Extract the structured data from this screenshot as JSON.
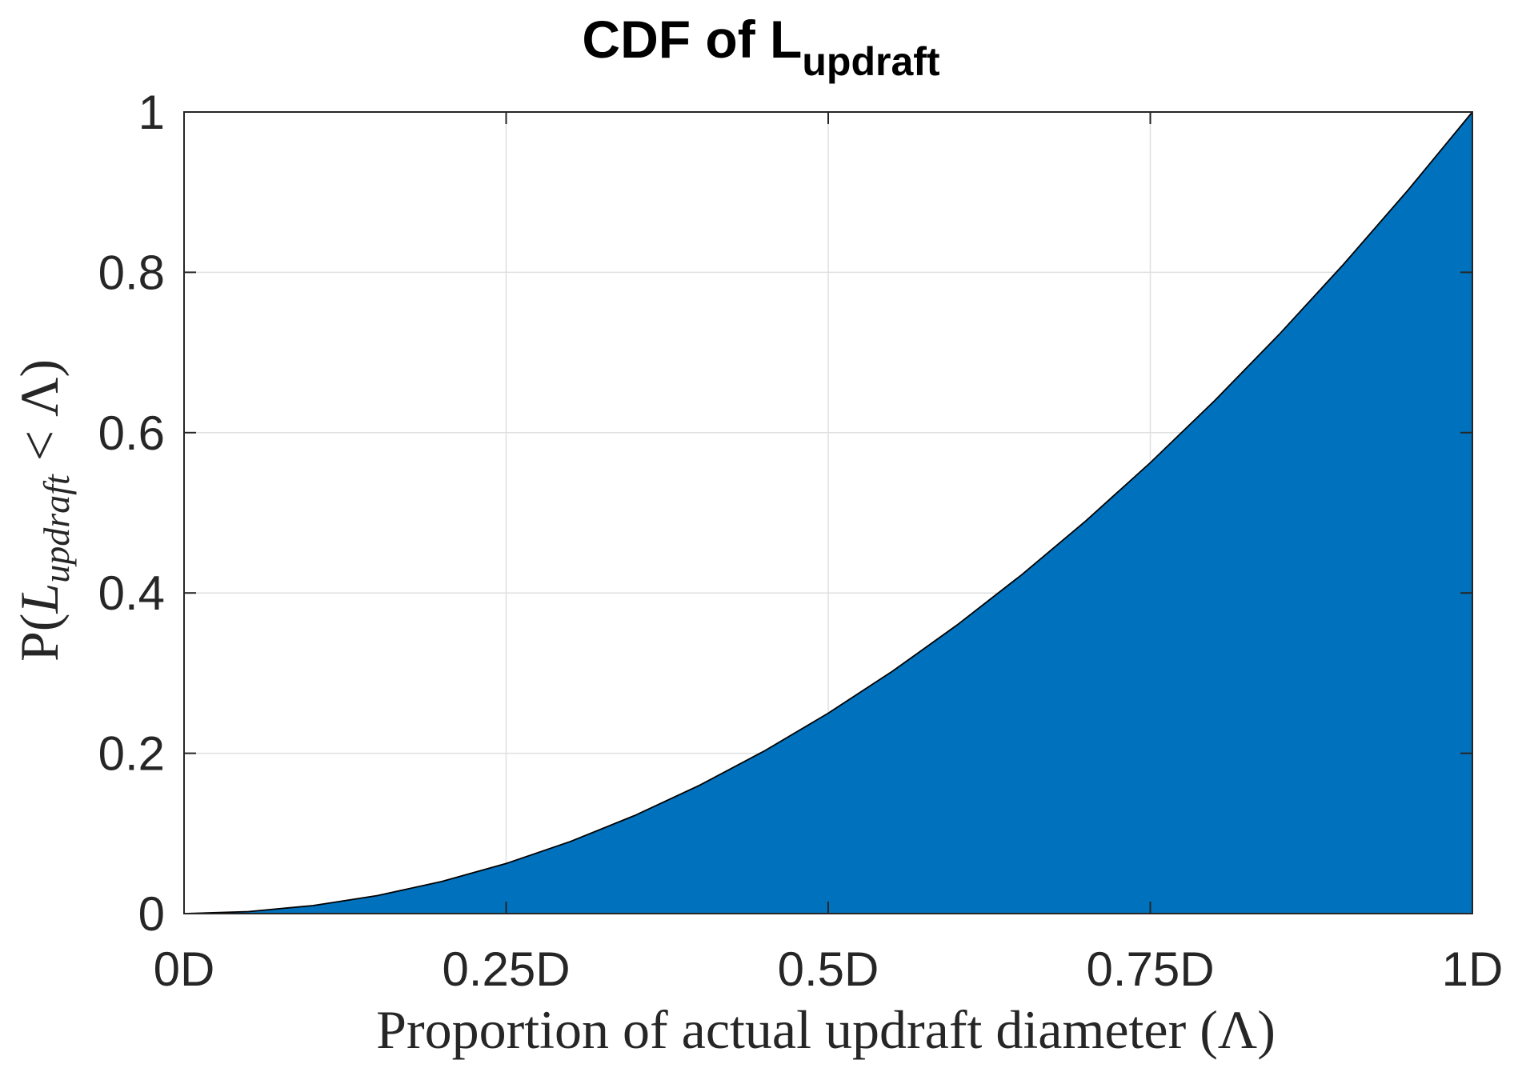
{
  "chart_data": {
    "type": "area",
    "title": "CDF of L",
    "title_subscript": "updraft",
    "xlabel": "Proportion of actual updraft diameter (Λ)",
    "ylabel": {
      "prefix": "P(",
      "variable": "L",
      "subscript": "updraft",
      "operator": " < ",
      "symbol": "Λ",
      "suffix": ")"
    },
    "xlim": [
      0,
      1
    ],
    "ylim": [
      0,
      1
    ],
    "x_ticks": [
      {
        "value": 0,
        "label": "0D"
      },
      {
        "value": 0.25,
        "label": "0.25D"
      },
      {
        "value": 0.5,
        "label": "0.5D"
      },
      {
        "value": 0.75,
        "label": "0.75D"
      },
      {
        "value": 1,
        "label": "1D"
      }
    ],
    "y_ticks": [
      {
        "value": 0,
        "label": "0"
      },
      {
        "value": 0.2,
        "label": "0.2"
      },
      {
        "value": 0.4,
        "label": "0.4"
      },
      {
        "value": 0.6,
        "label": "0.6"
      },
      {
        "value": 0.8,
        "label": "0.8"
      },
      {
        "value": 1,
        "label": "1"
      }
    ],
    "grid": true,
    "fill_color": "#0072BD",
    "edge_color": "#000000",
    "grid_color": "#DFDFDF",
    "series": [
      {
        "x": [
          0,
          0.05,
          0.1,
          0.15,
          0.2,
          0.25,
          0.3,
          0.35,
          0.4,
          0.45,
          0.5,
          0.55,
          0.6,
          0.65,
          0.7,
          0.75,
          0.8,
          0.85,
          0.9,
          0.95,
          1
        ],
        "y": [
          0,
          0.0025,
          0.01,
          0.0225,
          0.04,
          0.0625,
          0.09,
          0.1225,
          0.16,
          0.2025,
          0.25,
          0.3025,
          0.36,
          0.4225,
          0.49,
          0.5625,
          0.64,
          0.7225,
          0.81,
          0.9025,
          1
        ]
      }
    ]
  }
}
